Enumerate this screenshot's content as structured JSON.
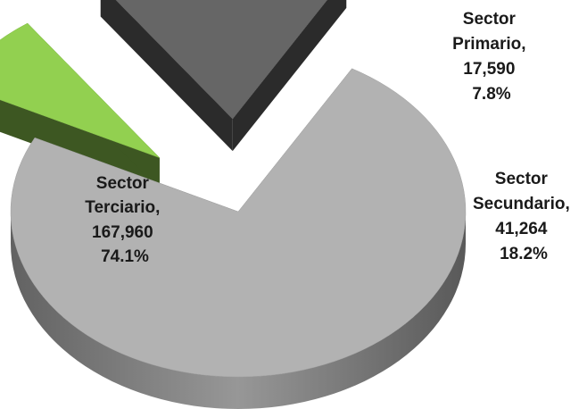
{
  "chart_data": {
    "type": "pie",
    "style": "3d-exploded",
    "slices": [
      {
        "name": "Sector Terciario",
        "value": 167960,
        "percent": 74.1,
        "color": "#b2b2b2",
        "label_lines": [
          "Sector",
          "Terciario,",
          "167,960",
          "74.1%"
        ]
      },
      {
        "name": "Sector Primario",
        "value": 17590,
        "percent": 7.8,
        "color": "#92d050",
        "label_lines": [
          "Sector",
          "Primario,",
          "17,590",
          "7.8%"
        ]
      },
      {
        "name": "Sector Secundario",
        "value": 41264,
        "percent": 18.2,
        "color": "#666666",
        "label_lines": [
          "Sector",
          "Secundario,",
          "41,264",
          "18.2%"
        ]
      }
    ]
  }
}
